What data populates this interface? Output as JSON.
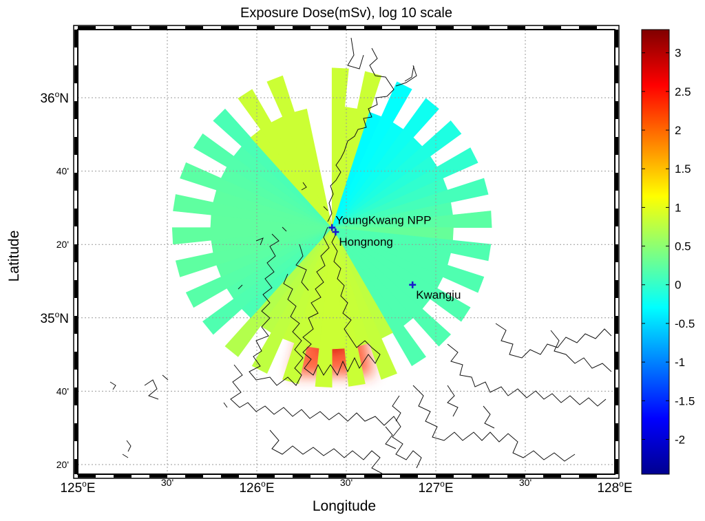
{
  "title": "Exposure Dose(mSv), log 10 scale",
  "x_label": "Longitude",
  "y_label": "Latitude",
  "lon_ticks": [
    {
      "lon": 125.0,
      "deg": "125",
      "sup": "o",
      "suffix": "E",
      "major": true
    },
    {
      "lon": 125.5,
      "text": "30'",
      "major": false
    },
    {
      "lon": 126.0,
      "deg": "126",
      "sup": "o",
      "suffix": "E",
      "major": true
    },
    {
      "lon": 126.5,
      "text": "30'",
      "major": false
    },
    {
      "lon": 127.0,
      "deg": "127",
      "sup": "o",
      "suffix": "E",
      "major": true
    },
    {
      "lon": 127.5,
      "text": "30'",
      "major": false
    },
    {
      "lon": 128.0,
      "deg": "128",
      "sup": "o",
      "suffix": "E",
      "major": true
    }
  ],
  "lat_ticks": [
    {
      "lat": 36.0,
      "deg": "36",
      "sup": "o",
      "suffix": "N",
      "major": true
    },
    {
      "lat": 35.6667,
      "text": "40'",
      "major": false
    },
    {
      "lat": 35.3333,
      "text": "20'",
      "major": false
    },
    {
      "lat": 35.0,
      "deg": "35",
      "sup": "o",
      "suffix": "N",
      "major": true
    },
    {
      "lat": 34.6667,
      "text": "40'",
      "major": false
    },
    {
      "lat": 34.3333,
      "text": "20'",
      "major": false
    }
  ],
  "colorbar": {
    "min": -2.45,
    "max": 3.3,
    "ticks": [
      3,
      2.5,
      2,
      1.5,
      1,
      0.5,
      0,
      -0.5,
      -1,
      -1.5,
      -2
    ],
    "colormap": "jet"
  },
  "sites": [
    {
      "name": "YoungKwang NPP",
      "lon": 126.42,
      "lat": 35.41,
      "color": "#1a1acc"
    },
    {
      "name": "Hongnong",
      "lon": 126.44,
      "lat": 35.39,
      "color": "#1a1acc"
    },
    {
      "name": "Kwangju",
      "lon": 126.87,
      "lat": 35.15,
      "color": "#1a1acc"
    }
  ],
  "dose_field": {
    "source": "YoungKwang NPP",
    "radius_km": 90,
    "excluded_bearing_deg": [
      -17,
      0
    ],
    "plume_bearing_deg": 180,
    "units": "log10 mSv"
  }
}
